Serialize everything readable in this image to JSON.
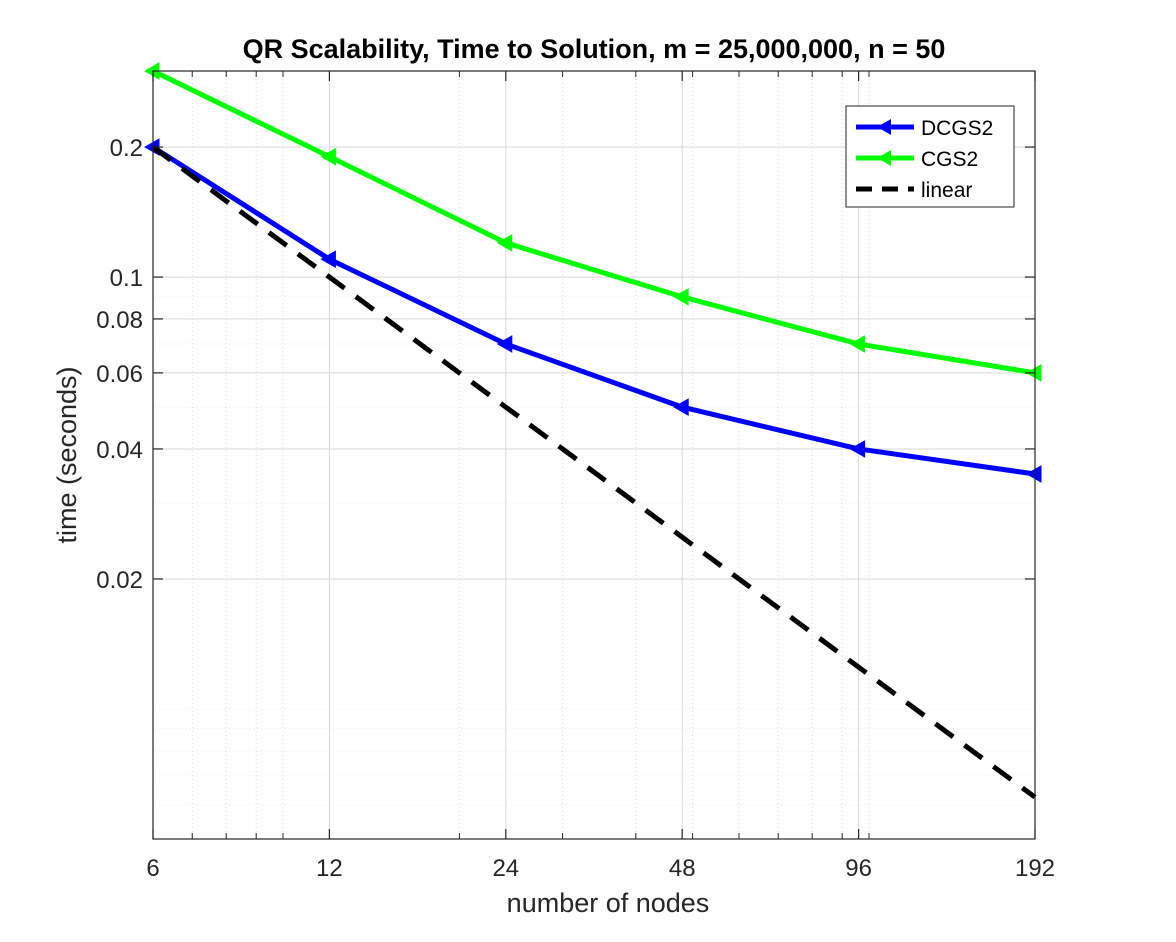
{
  "chart_data": {
    "type": "line",
    "title": "QR Scalability, Time to Solution, m = 25,000,000, n = 50",
    "xlabel": "number of nodes",
    "ylabel": "time (seconds)",
    "xscale": "log",
    "yscale": "log",
    "x": [
      6,
      12,
      24,
      48,
      96,
      192
    ],
    "xticks": [
      6,
      12,
      24,
      48,
      96,
      192
    ],
    "xtick_labels": [
      "6",
      "12",
      "24",
      "48",
      "96",
      "192"
    ],
    "xlim": [
      6,
      192
    ],
    "yticks": [
      0.02,
      0.04,
      0.06,
      0.08,
      0.1,
      0.2
    ],
    "ytick_labels": [
      "0.02",
      "0.04",
      "0.06",
      "0.08",
      "0.1",
      "0.2"
    ],
    "ylim": [
      0.005,
      0.3
    ],
    "grid": true,
    "legend_position": "top-right",
    "series": [
      {
        "name": "DCGS2",
        "values": [
          0.2,
          0.11,
          0.07,
          0.05,
          0.04,
          0.035
        ],
        "color": "#0000ff",
        "style": "solid",
        "marker": "left-triangle"
      },
      {
        "name": "CGS2",
        "values": [
          0.3,
          0.19,
          0.12,
          0.09,
          0.07,
          0.06
        ],
        "color": "#00ff00",
        "style": "solid",
        "marker": "left-triangle"
      },
      {
        "name": "linear",
        "values": [
          0.2,
          0.1,
          0.05,
          0.025,
          0.0125,
          0.00625
        ],
        "color": "#000000",
        "style": "dashed",
        "marker": "none"
      }
    ]
  }
}
